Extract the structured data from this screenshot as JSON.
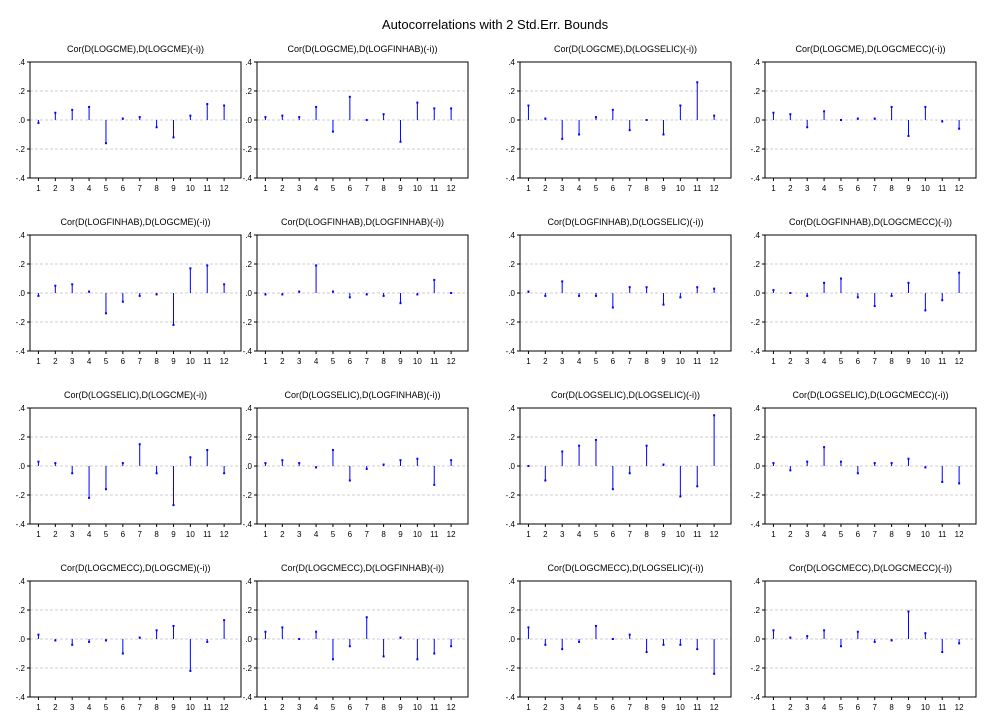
{
  "title": "Autocorrelations with 2 Std.Err. Bounds",
  "colors": {
    "stem": "#0000ff",
    "frame": "#000000",
    "grid": "#bdbdbd",
    "background": "#ffffff"
  },
  "chart_data": {
    "type": "bar",
    "grid": true,
    "title": "Autocorrelations with 2 Std.Err. Bounds",
    "ylim": [
      -0.4,
      0.4
    ],
    "yticks": [
      ".4",
      ".2",
      ".0",
      "-.2",
      "-.4"
    ],
    "lags": [
      "1",
      "2",
      "3",
      "4",
      "5",
      "6",
      "7",
      "8",
      "9",
      "10",
      "11",
      "12"
    ],
    "panels": [
      {
        "title": "Cor(D(LOGCME),D(LOGCME)(-i))",
        "values": [
          -0.02,
          0.05,
          0.07,
          0.09,
          -0.16,
          0.01,
          0.02,
          -0.05,
          -0.12,
          0.03,
          0.11,
          0.1
        ]
      },
      {
        "title": "Cor(D(LOGCME),D(LOGFINHAB)(-i))",
        "values": [
          0.02,
          0.03,
          0.02,
          0.09,
          -0.08,
          0.16,
          0.0,
          0.04,
          -0.15,
          0.12,
          0.08,
          0.08
        ]
      },
      {
        "title": "Cor(D(LOGCME),D(LOGSELIC)(-i))",
        "values": [
          0.1,
          0.01,
          -0.13,
          -0.1,
          0.02,
          0.07,
          -0.07,
          0.0,
          -0.1,
          0.1,
          0.26,
          0.03
        ]
      },
      {
        "title": "Cor(D(LOGCME),D(LOGCMECC)(-i))",
        "values": [
          0.05,
          0.04,
          -0.05,
          0.06,
          0.0,
          0.01,
          0.01,
          0.09,
          -0.11,
          0.09,
          -0.01,
          -0.06
        ]
      },
      {
        "title": "Cor(D(LOGFINHAB),D(LOGCME)(-i))",
        "values": [
          -0.02,
          0.05,
          0.06,
          0.01,
          -0.14,
          -0.06,
          -0.02,
          -0.01,
          -0.22,
          0.17,
          0.19,
          0.06
        ]
      },
      {
        "title": "Cor(D(LOGFINHAB),D(LOGFINHAB)(-i))",
        "values": [
          -0.01,
          -0.01,
          0.01,
          0.19,
          0.01,
          -0.03,
          -0.01,
          -0.02,
          -0.07,
          -0.01,
          0.09,
          0.0
        ]
      },
      {
        "title": "Cor(D(LOGFINHAB),D(LOGSELIC)(-i))",
        "values": [
          0.01,
          -0.02,
          0.08,
          -0.02,
          -0.02,
          -0.1,
          0.04,
          0.04,
          -0.08,
          -0.03,
          0.04,
          0.03
        ]
      },
      {
        "title": "Cor(D(LOGFINHAB),D(LOGCMECC)(-i))",
        "values": [
          0.02,
          0.0,
          -0.02,
          0.07,
          0.1,
          -0.03,
          -0.09,
          -0.02,
          0.07,
          -0.12,
          -0.05,
          0.14
        ]
      },
      {
        "title": "Cor(D(LOGSELIC),D(LOGCME)(-i))",
        "values": [
          0.03,
          0.02,
          -0.05,
          -0.22,
          -0.16,
          0.02,
          0.15,
          -0.05,
          -0.27,
          0.06,
          0.11,
          -0.05
        ]
      },
      {
        "title": "Cor(D(LOGSELIC),D(LOGFINHAB)(-i))",
        "values": [
          0.02,
          0.04,
          0.02,
          -0.01,
          0.11,
          -0.1,
          -0.02,
          0.01,
          0.04,
          0.05,
          -0.13,
          0.04
        ]
      },
      {
        "title": "Cor(D(LOGSELIC),D(LOGSELIC)(-i))",
        "values": [
          0.0,
          -0.1,
          0.1,
          0.14,
          0.18,
          -0.16,
          -0.05,
          0.14,
          0.01,
          -0.21,
          -0.14,
          0.35
        ]
      },
      {
        "title": "Cor(D(LOGSELIC),D(LOGCMECC)(-i))",
        "values": [
          0.02,
          -0.03,
          0.03,
          0.13,
          0.03,
          -0.05,
          0.02,
          0.02,
          0.05,
          -0.01,
          -0.11,
          -0.12
        ]
      },
      {
        "title": "Cor(D(LOGCMECC),D(LOGCME)(-i))",
        "values": [
          0.03,
          -0.01,
          -0.04,
          -0.02,
          -0.01,
          -0.1,
          0.01,
          0.06,
          0.09,
          -0.22,
          -0.02,
          0.13
        ]
      },
      {
        "title": "Cor(D(LOGCMECC),D(LOGFINHAB)(-i))",
        "values": [
          0.05,
          0.08,
          0.0,
          0.05,
          -0.14,
          -0.05,
          0.15,
          -0.12,
          0.01,
          -0.14,
          -0.1,
          -0.05
        ]
      },
      {
        "title": "Cor(D(LOGCMECC),D(LOGSELIC)(-i))",
        "values": [
          0.08,
          -0.04,
          -0.07,
          -0.02,
          0.09,
          0.0,
          0.03,
          -0.09,
          -0.04,
          -0.04,
          -0.07,
          -0.24
        ]
      },
      {
        "title": "Cor(D(LOGCMECC),D(LOGCMECC)(-i))",
        "values": [
          0.06,
          0.01,
          0.02,
          0.06,
          -0.05,
          0.05,
          -0.02,
          -0.01,
          0.19,
          0.04,
          -0.09,
          -0.03
        ]
      }
    ]
  }
}
